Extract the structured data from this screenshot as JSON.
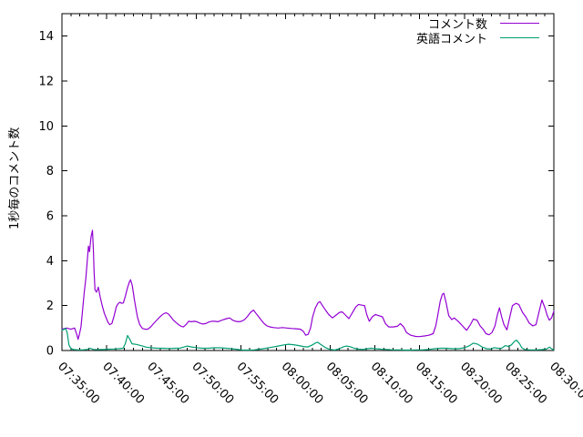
{
  "chart_data": {
    "type": "line",
    "title": "",
    "xlabel": "",
    "ylabel": "1秒毎のコメント数",
    "grid": false,
    "legend_position": "top-right",
    "ylim": [
      0,
      15
    ],
    "y_ticks": [
      0,
      2,
      4,
      6,
      8,
      10,
      12,
      14
    ],
    "x_range_seconds": [
      0,
      3300
    ],
    "x_major_tick_seconds": 300,
    "x_minor_tick_seconds": 60,
    "x_tick_labels": [
      "07:35:00",
      "07:40:00",
      "07:45:00",
      "07:50:00",
      "07:55:00",
      "08:00:00",
      "08:05:00",
      "08:10:00",
      "08:15:00",
      "08:20:00",
      "08:25:00",
      "08:30:00"
    ],
    "colors": {
      "axis": "#000000",
      "background": "#ffffff"
    },
    "series": [
      {
        "id": "comments",
        "name": "コメント数",
        "color": "#9400d3",
        "points": [
          [
            0,
            0.95
          ],
          [
            30,
            1.0
          ],
          [
            60,
            0.95
          ],
          [
            85,
            1.0
          ],
          [
            100,
            0.7
          ],
          [
            108,
            0.5
          ],
          [
            118,
            0.75
          ],
          [
            128,
            1.05
          ],
          [
            140,
            1.9
          ],
          [
            150,
            2.6
          ],
          [
            160,
            3.2
          ],
          [
            170,
            4.0
          ],
          [
            178,
            4.65
          ],
          [
            185,
            4.4
          ],
          [
            195,
            5.05
          ],
          [
            205,
            5.35
          ],
          [
            211,
            4.5
          ],
          [
            216,
            3.5
          ],
          [
            222,
            2.7
          ],
          [
            232,
            2.6
          ],
          [
            244,
            2.82
          ],
          [
            256,
            2.4
          ],
          [
            270,
            2.0
          ],
          [
            285,
            1.65
          ],
          [
            300,
            1.4
          ],
          [
            310,
            1.25
          ],
          [
            320,
            1.15
          ],
          [
            335,
            1.2
          ],
          [
            350,
            1.55
          ],
          [
            365,
            1.95
          ],
          [
            378,
            2.1
          ],
          [
            390,
            2.15
          ],
          [
            400,
            2.1
          ],
          [
            412,
            2.12
          ],
          [
            425,
            2.4
          ],
          [
            440,
            2.8
          ],
          [
            452,
            3.05
          ],
          [
            460,
            3.15
          ],
          [
            472,
            2.9
          ],
          [
            485,
            2.3
          ],
          [
            498,
            1.8
          ],
          [
            508,
            1.45
          ],
          [
            522,
            1.15
          ],
          [
            540,
            0.98
          ],
          [
            558,
            0.95
          ],
          [
            575,
            0.95
          ],
          [
            595,
            1.05
          ],
          [
            615,
            1.2
          ],
          [
            640,
            1.38
          ],
          [
            665,
            1.55
          ],
          [
            685,
            1.65
          ],
          [
            700,
            1.68
          ],
          [
            715,
            1.62
          ],
          [
            730,
            1.5
          ],
          [
            748,
            1.35
          ],
          [
            765,
            1.25
          ],
          [
            782,
            1.15
          ],
          [
            800,
            1.08
          ],
          [
            815,
            1.05
          ],
          [
            832,
            1.15
          ],
          [
            850,
            1.3
          ],
          [
            868,
            1.28
          ],
          [
            888,
            1.3
          ],
          [
            905,
            1.28
          ],
          [
            925,
            1.22
          ],
          [
            945,
            1.18
          ],
          [
            965,
            1.2
          ],
          [
            985,
            1.27
          ],
          [
            1005,
            1.3
          ],
          [
            1025,
            1.3
          ],
          [
            1045,
            1.28
          ],
          [
            1065,
            1.33
          ],
          [
            1085,
            1.38
          ],
          [
            1105,
            1.42
          ],
          [
            1125,
            1.45
          ],
          [
            1145,
            1.35
          ],
          [
            1165,
            1.3
          ],
          [
            1185,
            1.28
          ],
          [
            1205,
            1.3
          ],
          [
            1225,
            1.38
          ],
          [
            1245,
            1.52
          ],
          [
            1265,
            1.7
          ],
          [
            1285,
            1.8
          ],
          [
            1302,
            1.65
          ],
          [
            1320,
            1.5
          ],
          [
            1338,
            1.35
          ],
          [
            1356,
            1.2
          ],
          [
            1375,
            1.1
          ],
          [
            1395,
            1.05
          ],
          [
            1420,
            1.02
          ],
          [
            1450,
            1.0
          ],
          [
            1480,
            1.02
          ],
          [
            1510,
            1.0
          ],
          [
            1540,
            0.98
          ],
          [
            1570,
            0.97
          ],
          [
            1600,
            0.95
          ],
          [
            1620,
            0.85
          ],
          [
            1635,
            0.68
          ],
          [
            1652,
            0.72
          ],
          [
            1668,
            1.0
          ],
          [
            1682,
            1.5
          ],
          [
            1700,
            1.9
          ],
          [
            1718,
            2.12
          ],
          [
            1730,
            2.18
          ],
          [
            1748,
            2.0
          ],
          [
            1768,
            1.8
          ],
          [
            1790,
            1.6
          ],
          [
            1815,
            1.45
          ],
          [
            1840,
            1.58
          ],
          [
            1862,
            1.7
          ],
          [
            1880,
            1.72
          ],
          [
            1902,
            1.58
          ],
          [
            1925,
            1.42
          ],
          [
            1950,
            1.7
          ],
          [
            1972,
            1.95
          ],
          [
            1990,
            2.05
          ],
          [
            2012,
            2.02
          ],
          [
            2030,
            2.0
          ],
          [
            2045,
            1.6
          ],
          [
            2062,
            1.3
          ],
          [
            2082,
            1.5
          ],
          [
            2102,
            1.6
          ],
          [
            2128,
            1.55
          ],
          [
            2150,
            1.5
          ],
          [
            2170,
            1.2
          ],
          [
            2192,
            1.05
          ],
          [
            2222,
            1.05
          ],
          [
            2250,
            1.08
          ],
          [
            2270,
            1.2
          ],
          [
            2292,
            1.05
          ],
          [
            2312,
            0.8
          ],
          [
            2340,
            0.68
          ],
          [
            2372,
            0.63
          ],
          [
            2400,
            0.62
          ],
          [
            2432,
            0.65
          ],
          [
            2462,
            0.68
          ],
          [
            2490,
            0.75
          ],
          [
            2508,
            1.1
          ],
          [
            2522,
            1.6
          ],
          [
            2538,
            2.2
          ],
          [
            2552,
            2.5
          ],
          [
            2562,
            2.55
          ],
          [
            2578,
            2.1
          ],
          [
            2595,
            1.55
          ],
          [
            2615,
            1.38
          ],
          [
            2632,
            1.45
          ],
          [
            2658,
            1.3
          ],
          [
            2680,
            1.15
          ],
          [
            2700,
            1.0
          ],
          [
            2715,
            0.9
          ],
          [
            2740,
            1.15
          ],
          [
            2760,
            1.4
          ],
          [
            2785,
            1.35
          ],
          [
            2805,
            1.1
          ],
          [
            2825,
            0.95
          ],
          [
            2845,
            0.75
          ],
          [
            2865,
            0.7
          ],
          [
            2885,
            0.8
          ],
          [
            2905,
            1.1
          ],
          [
            2922,
            1.6
          ],
          [
            2935,
            1.9
          ],
          [
            2950,
            1.5
          ],
          [
            2965,
            1.15
          ],
          [
            2985,
            0.92
          ],
          [
            3005,
            1.5
          ],
          [
            3022,
            2.0
          ],
          [
            3045,
            2.1
          ],
          [
            3065,
            2.05
          ],
          [
            3090,
            1.7
          ],
          [
            3112,
            1.5
          ],
          [
            3135,
            1.22
          ],
          [
            3158,
            1.1
          ],
          [
            3180,
            1.15
          ],
          [
            3200,
            1.7
          ],
          [
            3220,
            2.25
          ],
          [
            3240,
            1.9
          ],
          [
            3256,
            1.55
          ],
          [
            3270,
            1.35
          ],
          [
            3285,
            1.45
          ],
          [
            3300,
            1.75
          ]
        ]
      },
      {
        "id": "english-comments",
        "name": "英語コメント",
        "color": "#009e73",
        "points": [
          [
            0,
            0.9
          ],
          [
            15,
            0.95
          ],
          [
            25,
            0.98
          ],
          [
            35,
            0.8
          ],
          [
            47,
            0.25
          ],
          [
            60,
            0.08
          ],
          [
            80,
            0.04
          ],
          [
            110,
            0.03
          ],
          [
            140,
            0.03
          ],
          [
            170,
            0.05
          ],
          [
            190,
            0.1
          ],
          [
            210,
            0.05
          ],
          [
            245,
            0.04
          ],
          [
            280,
            0.05
          ],
          [
            315,
            0.06
          ],
          [
            350,
            0.07
          ],
          [
            380,
            0.08
          ],
          [
            410,
            0.1
          ],
          [
            425,
            0.3
          ],
          [
            440,
            0.67
          ],
          [
            455,
            0.5
          ],
          [
            470,
            0.3
          ],
          [
            500,
            0.27
          ],
          [
            540,
            0.2
          ],
          [
            565,
            0.15
          ],
          [
            600,
            0.12
          ],
          [
            640,
            0.1
          ],
          [
            680,
            0.1
          ],
          [
            720,
            0.09
          ],
          [
            760,
            0.1
          ],
          [
            790,
            0.1
          ],
          [
            815,
            0.15
          ],
          [
            840,
            0.2
          ],
          [
            870,
            0.16
          ],
          [
            900,
            0.13
          ],
          [
            940,
            0.1
          ],
          [
            980,
            0.1
          ],
          [
            1020,
            0.12
          ],
          [
            1060,
            0.12
          ],
          [
            1100,
            0.1
          ],
          [
            1140,
            0.08
          ],
          [
            1180,
            0.05
          ],
          [
            1215,
            0.02
          ],
          [
            1255,
            0.02
          ],
          [
            1290,
            0.03
          ],
          [
            1330,
            0.06
          ],
          [
            1370,
            0.1
          ],
          [
            1410,
            0.15
          ],
          [
            1450,
            0.2
          ],
          [
            1490,
            0.25
          ],
          [
            1520,
            0.28
          ],
          [
            1552,
            0.26
          ],
          [
            1590,
            0.22
          ],
          [
            1620,
            0.18
          ],
          [
            1650,
            0.16
          ],
          [
            1680,
            0.25
          ],
          [
            1705,
            0.35
          ],
          [
            1715,
            0.37
          ],
          [
            1740,
            0.25
          ],
          [
            1770,
            0.12
          ],
          [
            1800,
            0.05
          ],
          [
            1830,
            0.02
          ],
          [
            1862,
            0.08
          ],
          [
            1890,
            0.17
          ],
          [
            1910,
            0.2
          ],
          [
            1935,
            0.17
          ],
          [
            1960,
            0.1
          ],
          [
            1990,
            0.06
          ],
          [
            2020,
            0.05
          ],
          [
            2050,
            0.08
          ],
          [
            2075,
            0.1
          ],
          [
            2100,
            0.08
          ],
          [
            2140,
            0.06
          ],
          [
            2180,
            0.05
          ],
          [
            2220,
            0.03
          ],
          [
            2260,
            0.03
          ],
          [
            2300,
            0.02
          ],
          [
            2340,
            0.02
          ],
          [
            2380,
            0.03
          ],
          [
            2420,
            0.03
          ],
          [
            2460,
            0.05
          ],
          [
            2500,
            0.08
          ],
          [
            2540,
            0.1
          ],
          [
            2580,
            0.1
          ],
          [
            2620,
            0.08
          ],
          [
            2660,
            0.08
          ],
          [
            2700,
            0.12
          ],
          [
            2730,
            0.2
          ],
          [
            2760,
            0.33
          ],
          [
            2790,
            0.28
          ],
          [
            2820,
            0.15
          ],
          [
            2850,
            0.08
          ],
          [
            2880,
            0.07
          ],
          [
            2900,
            0.13
          ],
          [
            2920,
            0.1
          ],
          [
            2950,
            0.1
          ],
          [
            2975,
            0.22
          ],
          [
            2995,
            0.18
          ],
          [
            3015,
            0.25
          ],
          [
            3035,
            0.4
          ],
          [
            3050,
            0.46
          ],
          [
            3070,
            0.3
          ],
          [
            3085,
            0.12
          ],
          [
            3105,
            0.05
          ],
          [
            3140,
            0.03
          ],
          [
            3180,
            0.03
          ],
          [
            3220,
            0.04
          ],
          [
            3250,
            0.06
          ],
          [
            3270,
            0.15
          ],
          [
            3285,
            0.08
          ],
          [
            3300,
            0.03
          ]
        ]
      }
    ]
  }
}
